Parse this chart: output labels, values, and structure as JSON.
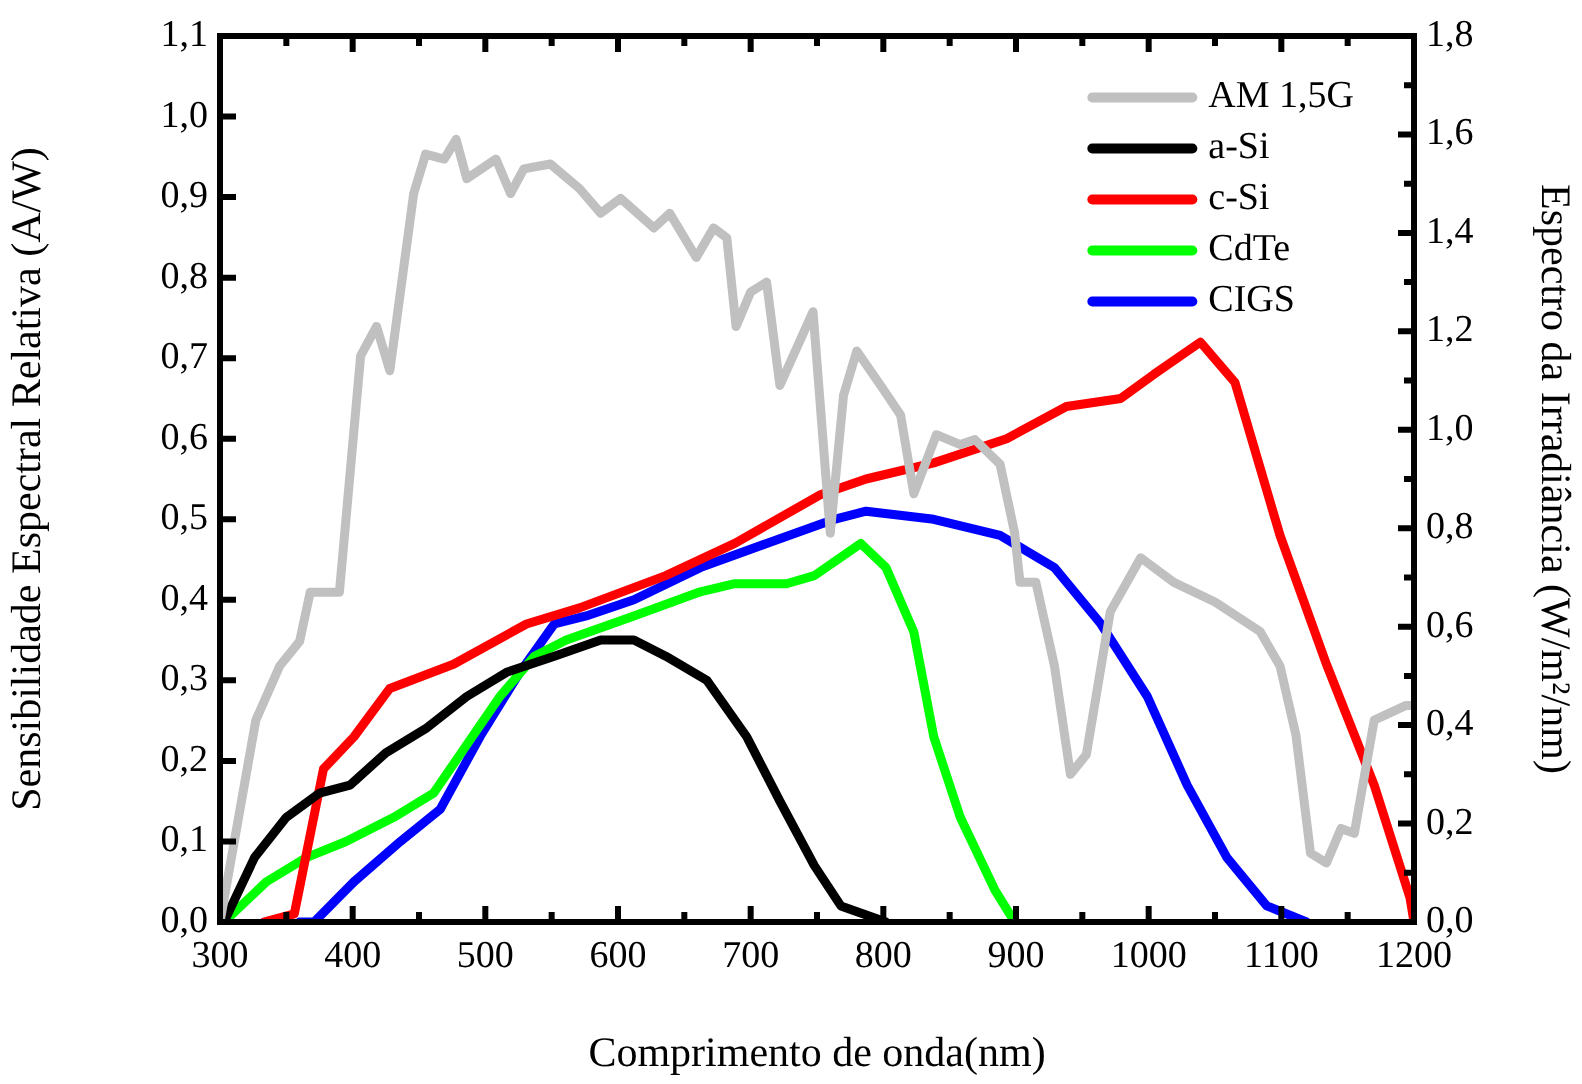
{
  "chart_data": {
    "type": "line",
    "xlabel": "Comprimento de onda(nm)",
    "ylabel": "Sensibilidade Espectral Relativa (A/W)",
    "y2label": "Espectro da Irradiância (W/m²/nm)",
    "legend": "top right",
    "line_style": "solid",
    "xlim": [
      300,
      1200
    ],
    "xticks": [
      300,
      {
        "value": 350,
        "label": null
      },
      400,
      {
        "value": 450,
        "label": null
      },
      500,
      {
        "value": 550,
        "label": null
      },
      600,
      {
        "value": 650,
        "label": null
      },
      700,
      {
        "value": 750,
        "label": null
      },
      800,
      {
        "value": 850,
        "label": null
      },
      900,
      {
        "value": 950,
        "label": null
      },
      1000,
      {
        "value": 1050,
        "label": null
      },
      1100,
      {
        "value": 1150,
        "label": null
      },
      1200
    ],
    "ylim": [
      0,
      1.1
    ],
    "yticks": [
      {
        "value": 0,
        "label": "0,0"
      },
      {
        "value": 0.1,
        "label": "0,1"
      },
      {
        "value": 0.2,
        "label": "0,2"
      },
      {
        "value": 0.3,
        "label": "0,3"
      },
      {
        "value": 0.4,
        "label": "0,4"
      },
      {
        "value": 0.5,
        "label": "0,5"
      },
      {
        "value": 0.6,
        "label": "0,6"
      },
      {
        "value": 0.7,
        "label": "0,7"
      },
      {
        "value": 0.8,
        "label": "0,8"
      },
      {
        "value": 0.9,
        "label": "0,9"
      },
      {
        "value": 1.0,
        "label": "1,0"
      },
      {
        "value": 1.1,
        "label": "1,1"
      }
    ],
    "y2lim": [
      0,
      1.8
    ],
    "y2ticks": [
      {
        "value": 0,
        "label": "0,0"
      },
      {
        "value": 0.1,
        "label": null
      },
      {
        "value": 0.2,
        "label": "0,2"
      },
      {
        "value": 0.3,
        "label": null
      },
      {
        "value": 0.4,
        "label": "0,4"
      },
      {
        "value": 0.5,
        "label": null
      },
      {
        "value": 0.6,
        "label": "0,6"
      },
      {
        "value": 0.7,
        "label": null
      },
      {
        "value": 0.8,
        "label": "0,8"
      },
      {
        "value": 0.9,
        "label": null
      },
      {
        "value": 1.0,
        "label": "1,0"
      },
      {
        "value": 1.1,
        "label": null
      },
      {
        "value": 1.2,
        "label": "1,2"
      },
      {
        "value": 1.3,
        "label": null
      },
      {
        "value": 1.4,
        "label": "1,4"
      },
      {
        "value": 1.5,
        "label": null
      },
      {
        "value": 1.6,
        "label": "1,6"
      },
      {
        "value": 1.7,
        "label": null
      },
      {
        "value": 1.8,
        "label": "1,8"
      }
    ],
    "series": [
      {
        "name": "AM 1,5G",
        "color": "#c0c0c0",
        "axis": "y2",
        "x": [
          300,
          327,
          345,
          360,
          368,
          390,
          406,
          418,
          428,
          446,
          455,
          469,
          478,
          486,
          508,
          519,
          529,
          549,
          571,
          587,
          602,
          627,
          639,
          659,
          672,
          682,
          689,
          700,
          712,
          722,
          747,
          760,
          770,
          780,
          798,
          813,
          823,
          840,
          858,
          869,
          888,
          899,
          903,
          915,
          929,
          941,
          953,
          971,
          994,
          1019,
          1050,
          1084,
          1099,
          1111,
          1122,
          1134,
          1145,
          1155,
          1170,
          1194,
          1200
        ],
        "values": [
          0,
          0.41,
          0.52,
          0.57,
          0.67,
          0.67,
          1.15,
          1.21,
          1.12,
          1.48,
          1.56,
          1.55,
          1.59,
          1.51,
          1.55,
          1.48,
          1.53,
          1.54,
          1.49,
          1.44,
          1.47,
          1.41,
          1.44,
          1.35,
          1.41,
          1.39,
          1.21,
          1.28,
          1.3,
          1.09,
          1.24,
          0.79,
          1.07,
          1.16,
          1.09,
          1.03,
          0.87,
          0.99,
          0.97,
          0.98,
          0.93,
          0.79,
          0.69,
          0.69,
          0.52,
          0.3,
          0.34,
          0.63,
          0.74,
          0.69,
          0.65,
          0.59,
          0.52,
          0.38,
          0.14,
          0.12,
          0.19,
          0.18,
          0.41,
          0.44,
          0.44
        ]
      },
      {
        "name": "a-Si",
        "color": "#000000",
        "x": [
          303,
          326,
          350,
          375,
          398,
          425,
          455,
          486,
          516,
          552,
          587,
          612,
          636,
          667,
          697,
          722,
          748,
          768,
          802
        ],
        "values": [
          0,
          0.08,
          0.13,
          0.16,
          0.17,
          0.21,
          0.24,
          0.28,
          0.31,
          0.33,
          0.35,
          0.35,
          0.33,
          0.3,
          0.23,
          0.15,
          0.07,
          0.02,
          0
        ]
      },
      {
        "name": "c-Si",
        "color": "#ff0000",
        "x": [
          333,
          356,
          378,
          401,
          428,
          476,
          531,
          571,
          636,
          688,
          752,
          787,
          838,
          893,
          938,
          979,
          1004,
          1039,
          1065,
          1099,
          1134,
          1170,
          1197,
          1200
        ],
        "values": [
          0,
          0.01,
          0.19,
          0.23,
          0.29,
          0.32,
          0.37,
          0.39,
          0.43,
          0.47,
          0.53,
          0.55,
          0.57,
          0.6,
          0.64,
          0.65,
          0.68,
          0.72,
          0.67,
          0.48,
          0.32,
          0.17,
          0.03,
          0
        ]
      },
      {
        "name": "CdTe",
        "color": "#00ff00",
        "x": [
          303,
          335,
          365,
          395,
          431,
          461,
          486,
          511,
          537,
          561,
          612,
          662,
          688,
          727,
          748,
          783,
          802,
          823,
          838,
          858,
          884,
          899
        ],
        "values": [
          0,
          0.05,
          0.08,
          0.1,
          0.13,
          0.16,
          0.22,
          0.28,
          0.33,
          0.35,
          0.38,
          0.41,
          0.42,
          0.42,
          0.43,
          0.47,
          0.44,
          0.36,
          0.23,
          0.13,
          0.04,
          0
        ]
      },
      {
        "name": "CIGS",
        "color": "#0000ff",
        "x": [
          360,
          371,
          401,
          436,
          466,
          496,
          526,
          552,
          576,
          612,
          662,
          712,
          763,
          787,
          838,
          888,
          929,
          964,
          999,
          1029,
          1059,
          1089,
          1119
        ],
        "values": [
          0,
          0,
          0.05,
          0.1,
          0.14,
          0.23,
          0.31,
          0.37,
          0.38,
          0.4,
          0.44,
          0.47,
          0.5,
          0.51,
          0.5,
          0.48,
          0.44,
          0.37,
          0.28,
          0.17,
          0.08,
          0.02,
          0
        ]
      }
    ]
  }
}
